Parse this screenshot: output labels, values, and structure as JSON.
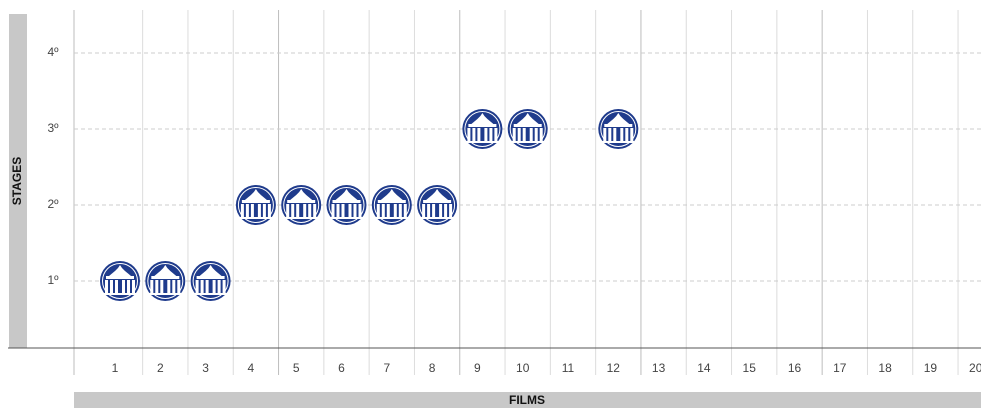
{
  "chart_data": {
    "type": "scatter",
    "title": "",
    "xlabel": "FILMS",
    "ylabel": "STAGES",
    "x_ticks": [
      "1",
      "2",
      "3",
      "4",
      "5",
      "6",
      "7",
      "8",
      "9",
      "10",
      "11",
      "12",
      "13",
      "14",
      "15",
      "16",
      "17",
      "18",
      "19",
      "20"
    ],
    "y_ticks": [
      "1º",
      "2º",
      "3º",
      "4º"
    ],
    "xlim": [
      1,
      20
    ],
    "ylim": [
      1,
      4
    ],
    "grid": true,
    "legend": "none",
    "marker_icon": "palace-facade-icon",
    "marker_color": "#1f3b8c",
    "series": [
      {
        "points": [
          {
            "x": 1,
            "y": 1
          },
          {
            "x": 2,
            "y": 1
          },
          {
            "x": 3,
            "y": 1
          },
          {
            "x": 4,
            "y": 2
          },
          {
            "x": 5,
            "y": 2
          },
          {
            "x": 6,
            "y": 2
          },
          {
            "x": 7,
            "y": 2
          },
          {
            "x": 8,
            "y": 2
          },
          {
            "x": 9,
            "y": 3
          },
          {
            "x": 10,
            "y": 3
          },
          {
            "x": 12,
            "y": 3
          }
        ]
      }
    ]
  }
}
